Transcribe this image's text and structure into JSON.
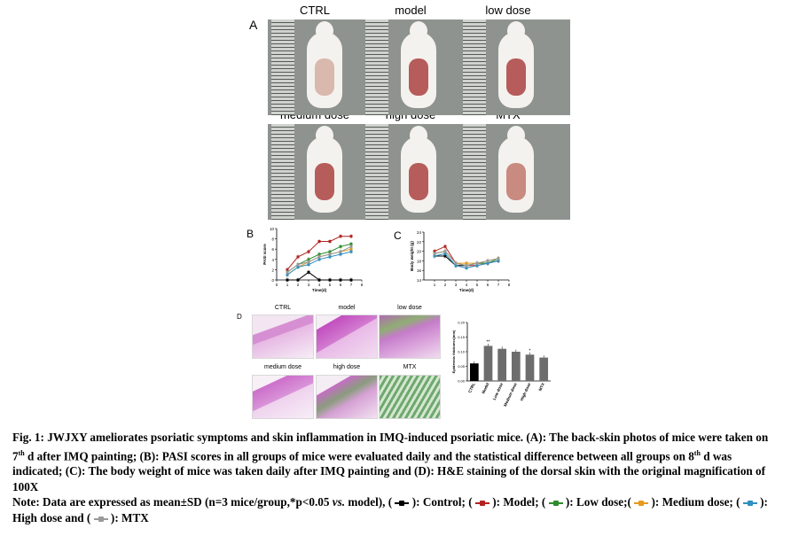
{
  "panel_a": {
    "letter": "A",
    "photos": [
      {
        "label": "CTRL"
      },
      {
        "label": "model"
      },
      {
        "label": "low dose"
      },
      {
        "label": "medium dose"
      },
      {
        "label": "high dose"
      },
      {
        "label": "MTX"
      }
    ]
  },
  "panel_d": {
    "letter": "D",
    "images": [
      {
        "label": "CTRL"
      },
      {
        "label": "model"
      },
      {
        "label": "low dose"
      },
      {
        "label": "medium dose"
      },
      {
        "label": "high dose"
      },
      {
        "label": "MTX"
      }
    ]
  },
  "chart_data": [
    {
      "type": "line",
      "panel": "B",
      "ylabel": "PASI score",
      "xlabel": "Time(d)",
      "xlim": [
        0,
        8
      ],
      "ylim": [
        0,
        10
      ],
      "xticks": [
        0,
        1,
        2,
        3,
        4,
        5,
        6,
        7,
        8
      ],
      "yticks": [
        0,
        2,
        4,
        6,
        8,
        10
      ],
      "x": [
        1,
        2,
        3,
        4,
        5,
        6,
        7
      ],
      "series": [
        {
          "color": "#000000",
          "values": [
            0,
            0,
            1.5,
            0,
            0,
            0,
            0
          ]
        },
        {
          "color": "#b22222",
          "values": [
            2,
            4.5,
            5.5,
            7.5,
            7.5,
            8.5,
            8.5
          ]
        },
        {
          "color": "#2e8b2e",
          "values": [
            1.5,
            3,
            4,
            5,
            5.5,
            6.5,
            7
          ]
        },
        {
          "color": "#e69a1e",
          "values": [
            1,
            2.5,
            3.5,
            4.5,
            5,
            5.5,
            6
          ]
        },
        {
          "color": "#2f8fc0",
          "values": [
            1,
            2.5,
            3,
            4,
            4.5,
            5,
            5.5
          ]
        },
        {
          "color": "#9a9a9a",
          "values": [
            1.5,
            3,
            3.5,
            4.5,
            5,
            5.5,
            6.5
          ]
        }
      ]
    },
    {
      "type": "line",
      "panel": "C",
      "ylabel": "Body weight (g)",
      "xlabel": "Time(d)",
      "xlim": [
        0,
        8
      ],
      "ylim": [
        14,
        24
      ],
      "xticks": [
        1,
        2,
        3,
        4,
        5,
        6,
        7,
        8
      ],
      "yticks": [
        14,
        16,
        18,
        20,
        22,
        24
      ],
      "x": [
        1,
        2,
        3,
        4,
        5,
        6,
        7
      ],
      "series": [
        {
          "color": "#000000",
          "values": [
            19,
            19,
            17,
            17,
            17.5,
            17.5,
            18
          ]
        },
        {
          "color": "#b22222",
          "values": [
            20,
            21,
            17.5,
            17,
            17,
            17.5,
            18
          ]
        },
        {
          "color": "#2e8b2e",
          "values": [
            19.5,
            20,
            17.5,
            17,
            17.5,
            17.5,
            18.5
          ]
        },
        {
          "color": "#e69a1e",
          "values": [
            19.5,
            20,
            17.5,
            17.5,
            17.5,
            18,
            18.5
          ]
        },
        {
          "color": "#2f8fc0",
          "values": [
            19,
            19.5,
            17,
            16.5,
            17,
            17.5,
            18
          ]
        },
        {
          "color": "#9a9a9a",
          "values": [
            19.5,
            20,
            17.5,
            17,
            17.5,
            18,
            18.5
          ]
        }
      ]
    },
    {
      "type": "bar",
      "panel": "D",
      "ylabel": "Epidermis thickness(mm)",
      "categories": [
        "CTRL",
        "Model",
        "Low dose",
        "Medium dose",
        "High dose",
        "MTX"
      ],
      "values": [
        0.06,
        0.12,
        0.11,
        0.1,
        0.09,
        0.08
      ],
      "ylim": [
        0,
        0.2
      ],
      "yticks": [
        "0.00",
        "0.05",
        "0.10",
        "0.15",
        "0.20"
      ],
      "annotations": [
        {
          "category": "Model",
          "text": "**"
        },
        {
          "category": "High dose",
          "text": "*"
        }
      ]
    }
  ],
  "caption": {
    "fig_label": "Fig. 1:",
    "part1": " JWJXY ameliorates psoriatic symptoms and skin inflammation in IMQ-induced psoriatic mice. (A): The back-skin photos of mice were taken on 7",
    "sup_th": "th",
    "part2": " d after IMQ painting; (B): PASI scores in all groups of mice were evaluated daily and the statistical difference between all groups on 8",
    "sup_th2": "th",
    "part3": " d was indicated; (C): The body weight of mice was taken daily after IMQ painting and (D): H&E staining of the dorsal skin with the original magnification of 100X"
  },
  "note": {
    "prefix": "Note: Data are expressed as mean±SD (n=3 mice/group,*p<0.05 ",
    "vs": "vs.",
    "mid": " model), ",
    "items": [
      {
        "color": "#000000",
        "label": "): Control; "
      },
      {
        "color": "#b22222",
        "label": "): Model; "
      },
      {
        "color": "#2e8b2e",
        "label": "): Low dose;"
      },
      {
        "color": "#e69a1e",
        "label": "): Medium dose; "
      },
      {
        "color": "#2f8fc0",
        "label": "): High dose and "
      },
      {
        "color": "#9a9a9a",
        "label": "): MTX"
      }
    ],
    "open_paren": "("
  }
}
